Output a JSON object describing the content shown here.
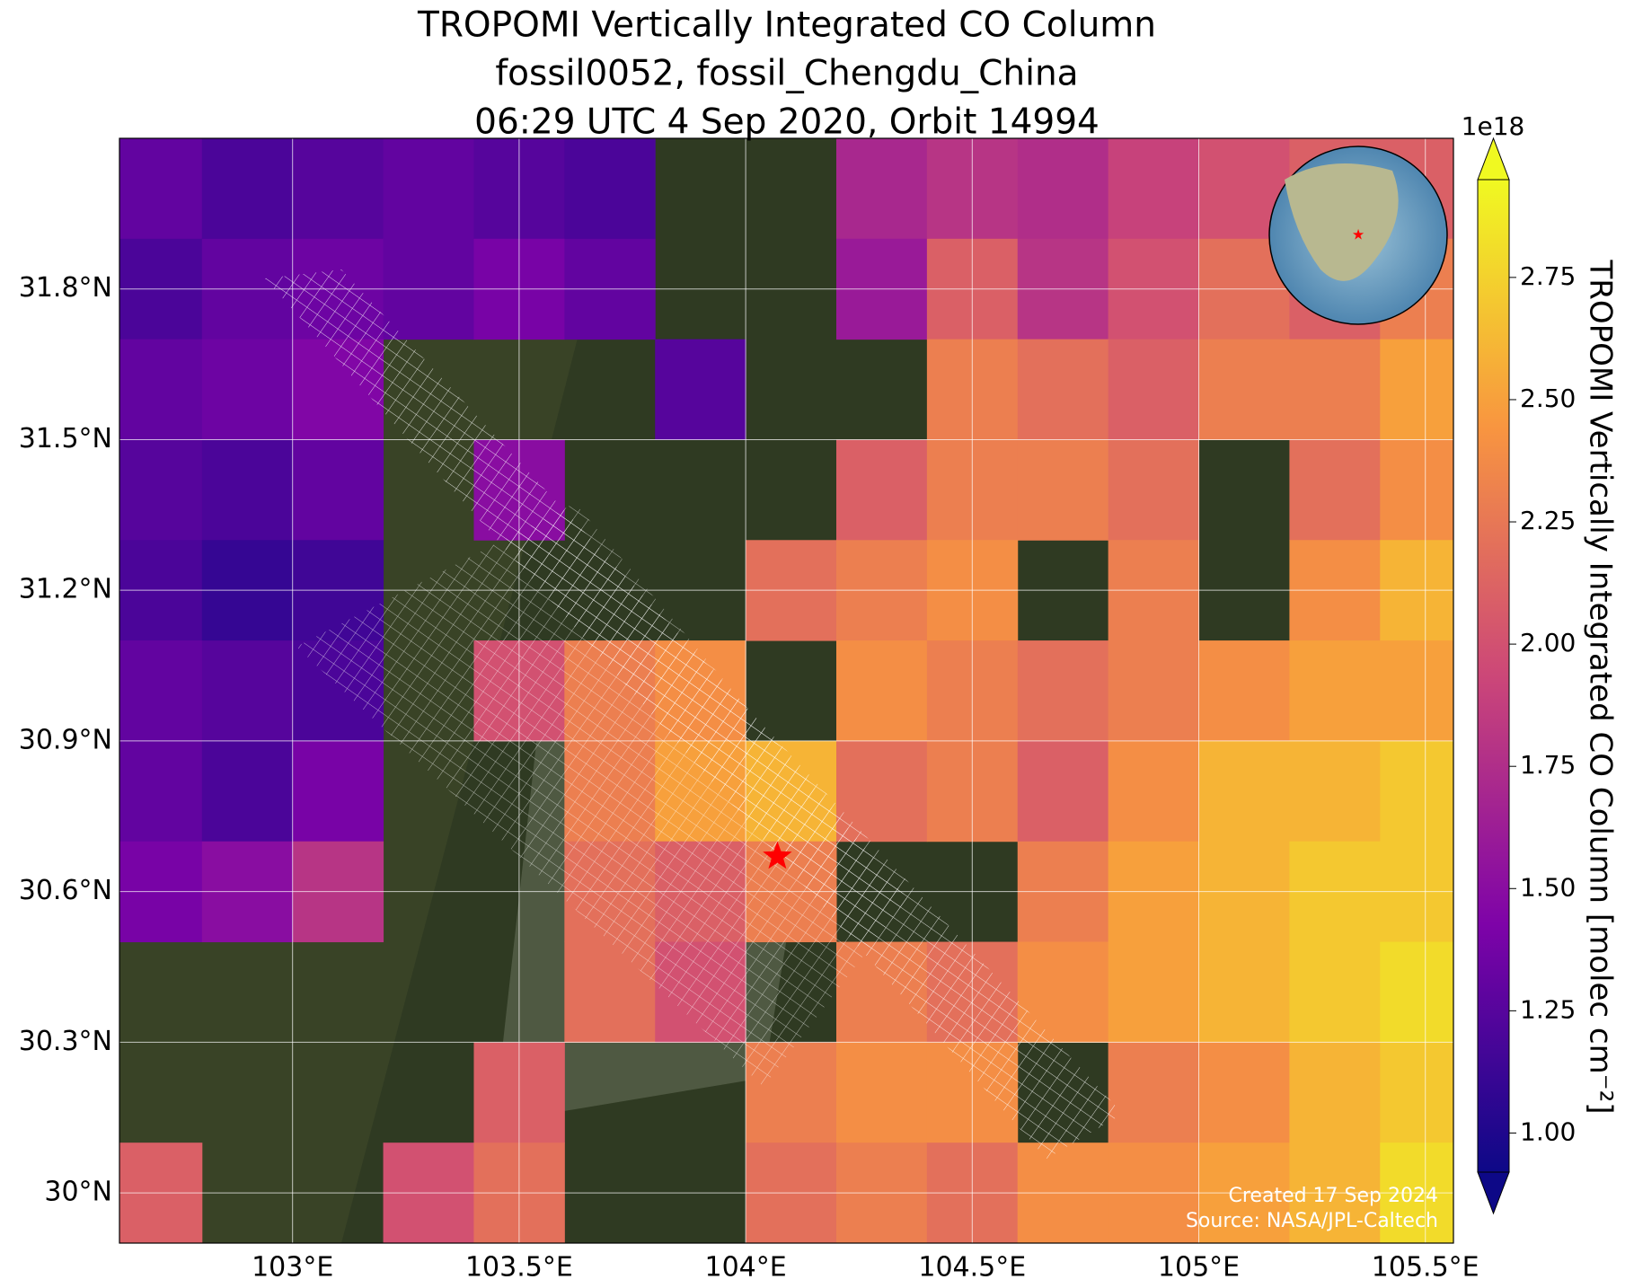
{
  "chart_data": {
    "type": "heatmap",
    "title": [
      "TROPOMI Vertically Integrated CO Column",
      "fossil0052, fossil_Chengdu_China",
      "06:29 UTC 4 Sep 2020, Orbit 14994"
    ],
    "xlim": [
      102.618,
      105.562
    ],
    "ylim": [
      29.9,
      32.1
    ],
    "xticks": [
      {
        "value": 103,
        "label": "103°E"
      },
      {
        "value": 103.5,
        "label": "103.5°E"
      },
      {
        "value": 104,
        "label": "104°E"
      },
      {
        "value": 104.5,
        "label": "104.5°E"
      },
      {
        "value": 105,
        "label": "105°E"
      },
      {
        "value": 105.5,
        "label": "105.5°E"
      }
    ],
    "yticks": [
      {
        "value": 30,
        "label": "30°N"
      },
      {
        "value": 30.3,
        "label": "30.3°N"
      },
      {
        "value": 30.6,
        "label": "30.6°N"
      },
      {
        "value": 30.9,
        "label": "30.9°N"
      },
      {
        "value": 31.2,
        "label": "31.2°N"
      },
      {
        "value": 31.5,
        "label": "31.5°N"
      },
      {
        "value": 31.8,
        "label": "31.8°N"
      }
    ],
    "grid": true,
    "lon": [
      102.7,
      102.9,
      103.1,
      103.3,
      103.5,
      103.7,
      103.9,
      104.1,
      104.3,
      104.5,
      104.7,
      104.9,
      105.1,
      105.3,
      105.5
    ],
    "lat": [
      32.0,
      31.8,
      31.6,
      31.4,
      31.2,
      31.0,
      30.8,
      30.6,
      30.4,
      30.2,
      30.0
    ],
    "values": [
      [
        1.3,
        1.2,
        1.25,
        1.3,
        1.25,
        1.2,
        null,
        null,
        1.7,
        1.8,
        1.75,
        1.9,
        2.0,
        2.1,
        2.1
      ],
      [
        1.2,
        1.3,
        1.35,
        1.3,
        1.4,
        1.3,
        null,
        null,
        1.6,
        2.1,
        1.8,
        2.0,
        2.2,
        2.1,
        2.3
      ],
      [
        1.3,
        1.35,
        1.45,
        null,
        null,
        null,
        1.25,
        null,
        null,
        2.3,
        2.2,
        2.1,
        2.3,
        2.3,
        2.5
      ],
      [
        1.25,
        1.2,
        1.3,
        null,
        1.5,
        null,
        null,
        null,
        2.1,
        2.3,
        2.3,
        2.2,
        null,
        2.2,
        2.4
      ],
      [
        1.2,
        1.1,
        1.15,
        null,
        null,
        null,
        null,
        2.2,
        2.3,
        2.4,
        null,
        2.3,
        null,
        2.4,
        2.6
      ],
      [
        1.3,
        1.25,
        1.2,
        null,
        2.0,
        2.3,
        2.4,
        null,
        2.4,
        2.3,
        2.2,
        2.3,
        2.4,
        2.5,
        2.5
      ],
      [
        1.3,
        1.2,
        1.4,
        null,
        null,
        2.3,
        2.5,
        2.6,
        2.2,
        2.3,
        2.1,
        2.4,
        2.6,
        2.6,
        2.7
      ],
      [
        1.4,
        1.5,
        1.8,
        null,
        null,
        2.2,
        2.1,
        2.3,
        null,
        null,
        2.3,
        2.5,
        2.6,
        2.7,
        2.7
      ],
      [
        null,
        null,
        null,
        null,
        null,
        2.2,
        2.0,
        null,
        2.3,
        2.2,
        2.4,
        2.5,
        2.6,
        2.7,
        2.8
      ],
      [
        null,
        null,
        null,
        null,
        2.1,
        null,
        null,
        2.3,
        2.4,
        2.4,
        null,
        2.3,
        2.4,
        2.6,
        2.7
      ],
      [
        2.1,
        null,
        null,
        2.0,
        2.2,
        null,
        null,
        2.2,
        2.3,
        2.2,
        2.4,
        2.4,
        2.5,
        2.6,
        2.8
      ]
    ],
    "site": [
      104.07,
      30.67
    ],
    "colorbar": {
      "label": "TROPOMI Vertically Integrated CO Column [molec cm⁻²]",
      "exponent": "1e18",
      "clim": [
        0.92,
        2.95
      ],
      "ticks": [
        {
          "value": 1,
          "label": "1.00"
        },
        1.25,
        {
          "value": 1.5,
          "label": "1.50"
        },
        1.75,
        {
          "value": 2,
          "label": "2.00"
        },
        2.25,
        {
          "value": 2.5,
          "label": "2.50"
        },
        2.75
      ]
    },
    "footnotes": [
      "Created 17 Sep 2024",
      "Source: NASA/JPL-Caltech"
    ]
  }
}
